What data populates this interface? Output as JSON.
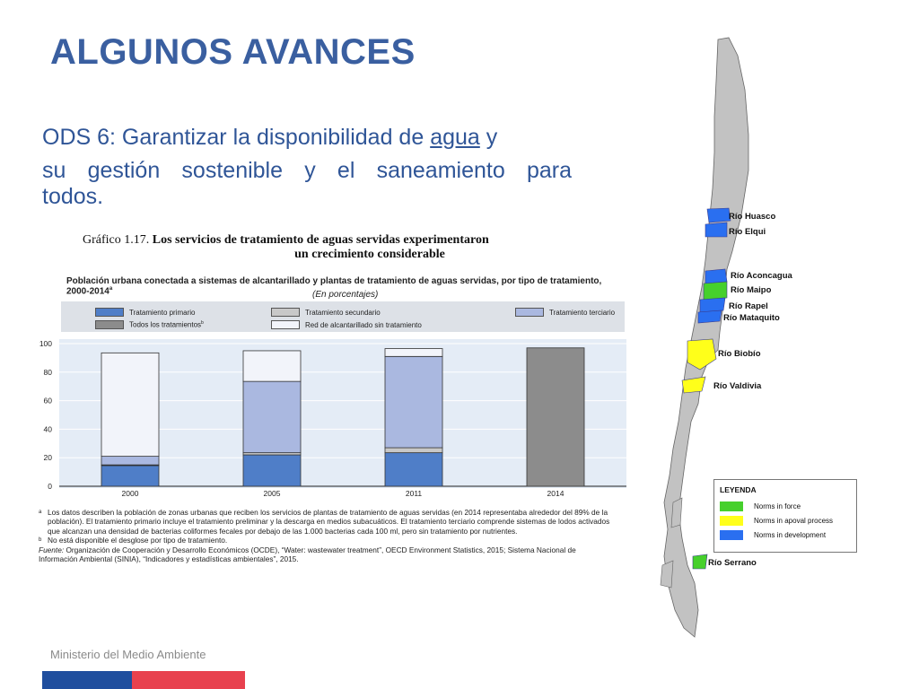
{
  "header": {
    "title": "ALGUNOS AVANCES",
    "subtitle_line1_pre": "ODS 6: Garantizar la disponibilidad de ",
    "subtitle_line1_link": "agua",
    "subtitle_line1_post": " y",
    "subtitle_line2": "su gestión sostenible y el saneamiento para",
    "subtitle_line3": "todos."
  },
  "figure": {
    "label": "Gráfico 1.17.",
    "title_line1": "Los servicios de tratamiento de aguas servidas experimentaron",
    "title_line2": "un crecimiento considerable",
    "chart_header": "Población urbana conectada a sistemas de alcantarillado y plantas de tratamiento de aguas servidas, por tipo de tratamiento, 2000-2014",
    "chart_header_sup": "a",
    "units": "(En porcentajes)",
    "notes": [
      {
        "mark": "a",
        "text": "Los datos describen la población de zonas urbanas que reciben los servicios de plantas de tratamiento de aguas servidas (en 2014 representaba alrededor del 89% de la población). El tratamiento primario incluye el tratamiento preliminar y la descarga en medios subacuáticos. El tratamiento terciario comprende sistemas de lodos activados que alcanzan una densidad de bacterias coliformes fecales por debajo de las 1.000 bacterias cada 100 ml, pero sin tratamiento por nutrientes."
      },
      {
        "mark": "b",
        "text": "No está disponible el desglose por tipo de tratamiento."
      }
    ],
    "source_label": "Fuente:",
    "source_text": "Organización de Cooperación y Desarrollo Económicos (OCDE), “Water: wastewater treatment”, OECD Environment Statistics, 2015; Sistema Nacional de Información Ambiental (SINIA), “Indicadores y estadísticas ambientales”, 2015."
  },
  "chart_data": {
    "type": "bar",
    "stacked": true,
    "categories": [
      "2000",
      "2005",
      "2011",
      "2014"
    ],
    "ylim": [
      0,
      100
    ],
    "yticks": [
      0,
      20,
      40,
      60,
      80,
      100
    ],
    "legend_position": "top",
    "series": [
      {
        "name": "Tratamiento primario",
        "color": "#4f7ec8",
        "values": [
          14.5,
          22,
          23.5,
          0
        ]
      },
      {
        "name": "Tratamiento secundario",
        "color": "#c8c8c8",
        "values": [
          0.5,
          1.5,
          3.5,
          0
        ]
      },
      {
        "name": "Tratamiento terciario",
        "color": "#aab8e0",
        "values": [
          6,
          50,
          64,
          0
        ]
      },
      {
        "name": "Todos los tratamientos",
        "name_sup": "b",
        "color": "#8c8c8c",
        "values": [
          0,
          0,
          0,
          97
        ]
      },
      {
        "name": "Red de alcantarillado sin tratamiento",
        "color": "#f2f4fa",
        "values": [
          72.5,
          21.5,
          5.5,
          0
        ]
      }
    ]
  },
  "map": {
    "rivers": [
      "Río Huasco",
      "Río Elqui",
      "Río Aconcagua",
      "Río Maipo",
      "Río Rapel",
      "Río Mataquito",
      "Río Biobío",
      "Río Valdivia",
      "Río Serrano"
    ],
    "legend_title": "LEYENDA",
    "legend": [
      {
        "label": "Norms in force",
        "color": "#46d02c"
      },
      {
        "label": "Norms in apoval process",
        "color": "#ffff1a"
      },
      {
        "label": "Norms in development",
        "color": "#2a6ff0"
      }
    ],
    "land_color": "#c2c2c2"
  },
  "footer": {
    "ministry": "Ministerio del Medio Ambiente",
    "brand_blue": "#1f4e9e",
    "brand_red": "#e8414e"
  }
}
